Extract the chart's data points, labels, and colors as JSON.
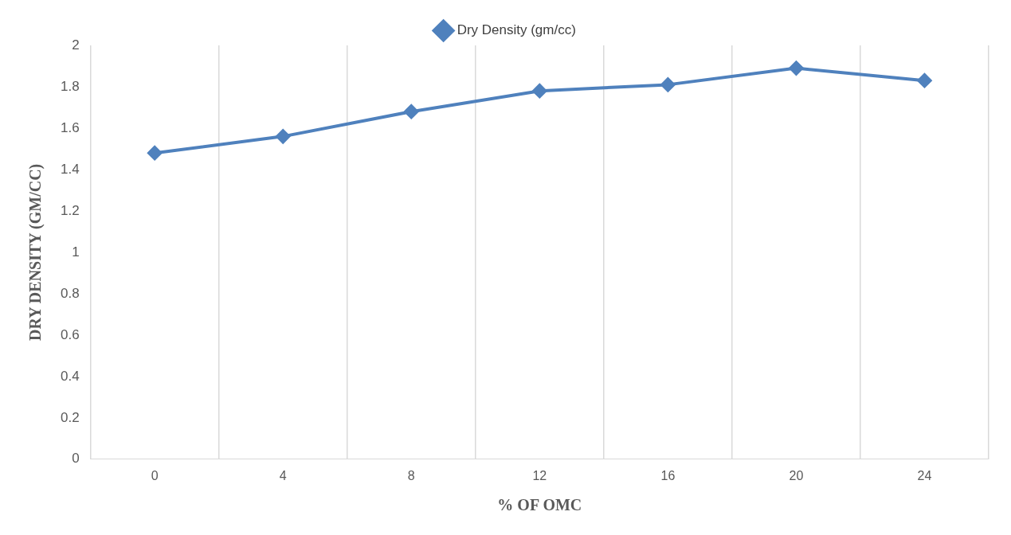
{
  "chart_data": {
    "type": "line",
    "xlabel": "% OF OMC",
    "ylabel": "DRY DENSITY (GM/CC)",
    "categories": [
      "0",
      "4",
      "8",
      "12",
      "16",
      "20",
      "24"
    ],
    "series": [
      {
        "name": "Dry Density (gm/cc)",
        "color": "#4f81bd",
        "values": [
          1.48,
          1.56,
          1.68,
          1.78,
          1.81,
          1.89,
          1.83
        ]
      }
    ],
    "ylim": [
      0,
      2
    ],
    "yticks": [
      0,
      0.2,
      0.4,
      0.6,
      0.8,
      1,
      1.2,
      1.4,
      1.6,
      1.8,
      2
    ],
    "grid": "x",
    "legend": "top",
    "marker": "diamond",
    "line_style": "solid"
  }
}
